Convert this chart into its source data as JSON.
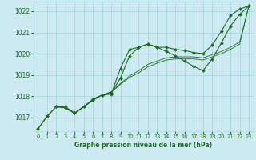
{
  "title": "Graphe pression niveau de la mer (hPa)",
  "bg_color": "#cdeaf2",
  "grid_color": "#a8d8e0",
  "line_color": "#1a6e1a",
  "xlim": [
    -0.5,
    23.5
  ],
  "ylim": [
    1016.35,
    1022.45
  ],
  "yticks": [
    1017,
    1018,
    1019,
    1020,
    1021,
    1022
  ],
  "xticks": [
    0,
    1,
    2,
    3,
    4,
    5,
    6,
    7,
    8,
    9,
    10,
    11,
    12,
    13,
    14,
    15,
    16,
    17,
    18,
    19,
    20,
    21,
    22,
    23
  ],
  "s1x": [
    0,
    1,
    2,
    3,
    4,
    5,
    6,
    7,
    8,
    9,
    10,
    11,
    12,
    13,
    14,
    15,
    16,
    17,
    18,
    19,
    20,
    21,
    22,
    23
  ],
  "s1y": [
    1016.45,
    1017.05,
    1017.5,
    1017.5,
    1017.2,
    1017.5,
    1017.8,
    1018.05,
    1018.1,
    1019.3,
    1020.2,
    1020.3,
    1020.45,
    1020.3,
    1020.3,
    1020.2,
    1020.15,
    1020.05,
    1020.0,
    1020.4,
    1021.05,
    1021.8,
    1022.1,
    1022.25
  ],
  "s2x": [
    0,
    1,
    2,
    3,
    4,
    5,
    6,
    7,
    8,
    9,
    10,
    11,
    12,
    13,
    14,
    15,
    16,
    17,
    18,
    19,
    20,
    21,
    22,
    23
  ],
  "s2y": [
    1016.45,
    1017.05,
    1017.5,
    1017.45,
    1017.2,
    1017.5,
    1017.85,
    1018.05,
    1018.15,
    1018.85,
    1019.9,
    1020.3,
    1020.45,
    1020.3,
    1020.1,
    1019.9,
    1019.65,
    1019.4,
    1019.2,
    1019.75,
    1020.5,
    1021.3,
    1021.85,
    1022.25
  ],
  "s3x": [
    2,
    3,
    4,
    5,
    6,
    7,
    8,
    9,
    10,
    11,
    12,
    13,
    14,
    15,
    16,
    17,
    18,
    19,
    20,
    21,
    22,
    23
  ],
  "s3y": [
    1017.5,
    1017.45,
    1017.2,
    1017.5,
    1017.85,
    1018.05,
    1018.2,
    1018.6,
    1018.95,
    1019.2,
    1019.5,
    1019.65,
    1019.8,
    1019.85,
    1019.85,
    1019.85,
    1019.8,
    1019.95,
    1020.1,
    1020.3,
    1020.55,
    1022.25
  ],
  "s4x": [
    2,
    3,
    4,
    5,
    6,
    7,
    8,
    9,
    10,
    11,
    12,
    13,
    14,
    15,
    16,
    17,
    18,
    19,
    20,
    21,
    22,
    23
  ],
  "s4y": [
    1017.5,
    1017.45,
    1017.2,
    1017.5,
    1017.85,
    1018.05,
    1018.2,
    1018.55,
    1018.88,
    1019.1,
    1019.38,
    1019.55,
    1019.7,
    1019.75,
    1019.75,
    1019.75,
    1019.7,
    1019.85,
    1020.0,
    1020.2,
    1020.45,
    1022.25
  ]
}
